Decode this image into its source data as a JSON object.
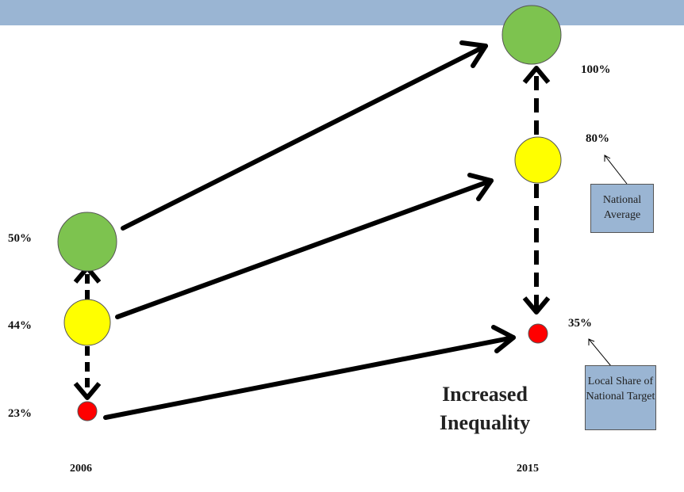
{
  "years": {
    "start": "2006",
    "end": "2015"
  },
  "values_2006": {
    "green": "50%",
    "yellow": "44%",
    "red": "23%"
  },
  "values_2015": {
    "green": "100%",
    "yellow": "80%",
    "red": "35%"
  },
  "annotations": {
    "national_average": "National Average",
    "local_share": "Local Share of National Target"
  },
  "headline": [
    "Increased",
    "Inequality"
  ],
  "colors": {
    "green": "#7dc34f",
    "yellow": "#ffff00",
    "red": "#ff0000",
    "band": "#9ab5d3",
    "arrow": "#000000"
  }
}
